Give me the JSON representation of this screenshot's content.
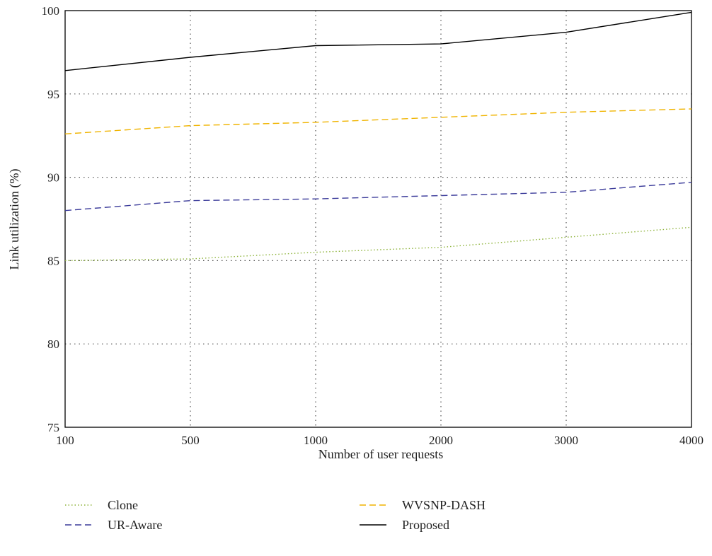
{
  "chart_data": {
    "type": "line",
    "categories": [
      "100",
      "500",
      "1000",
      "2000",
      "3000",
      "4000"
    ],
    "xlabel": "Number of user requests",
    "ylabel": "Link utilization (%)",
    "ylim": [
      75,
      100
    ],
    "yticks": [
      75,
      80,
      85,
      90,
      95,
      100
    ],
    "grid": true,
    "legend_position": "bottom",
    "series": [
      {
        "name": "Clone",
        "values": [
          85.0,
          85.1,
          85.5,
          85.8,
          86.4,
          87.0
        ],
        "color": "#8db33a",
        "style": "dotted"
      },
      {
        "name": "WVSNP-DASH",
        "values": [
          92.6,
          93.1,
          93.3,
          93.6,
          93.9,
          94.1
        ],
        "color": "#f0b400",
        "style": "dashed"
      },
      {
        "name": "UR-Aware",
        "values": [
          88.0,
          88.6,
          88.7,
          88.9,
          89.1,
          89.7
        ],
        "color": "#3b3b9a",
        "style": "dashed"
      },
      {
        "name": "Proposed",
        "values": [
          96.4,
          97.2,
          97.9,
          98.0,
          98.7,
          99.9
        ],
        "color": "#000000",
        "style": "solid"
      }
    ]
  }
}
